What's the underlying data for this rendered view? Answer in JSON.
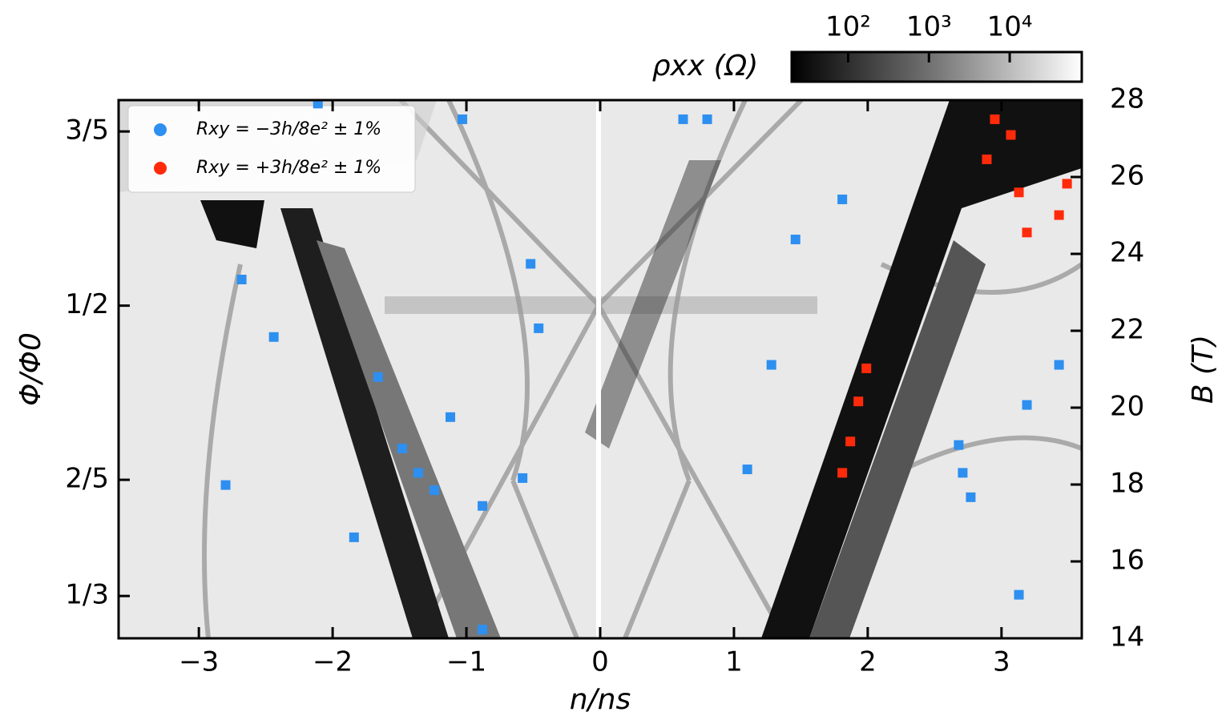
{
  "chart_data": {
    "type": "scatter",
    "xlabel": "n/ns",
    "ylabel": "Φ/Φ0",
    "y2label": "B (T)",
    "xlim": [
      -3.6,
      3.6
    ],
    "xticks": [
      {
        "value": -3,
        "label": "−3"
      },
      {
        "value": -2,
        "label": "−2"
      },
      {
        "value": -1,
        "label": "−1"
      },
      0,
      1,
      2,
      3
    ],
    "ylim": [
      0.309,
      0.618
    ],
    "yticks": [
      {
        "value": 0.6,
        "label": "3/5"
      },
      {
        "value": 0.5,
        "label": "1/2"
      },
      {
        "value": 0.4,
        "label": "2/5"
      },
      {
        "value": 0.3333,
        "label": "1/3"
      }
    ],
    "y2lim": [
      14,
      28
    ],
    "y2ticks": [
      14,
      16,
      18,
      20,
      22,
      24,
      26,
      28
    ],
    "colorbar": {
      "label": "ρxx (Ω)",
      "log": true,
      "clim": [
        20,
        78000
      ],
      "ticks": [
        {
          "value": 100,
          "label": "10²"
        },
        {
          "value": 1000,
          "label": "10³"
        },
        {
          "value": 10000,
          "label": "10⁴"
        }
      ]
    },
    "legend": "upper left",
    "series": [
      {
        "name": "Rxy = −3h/8e² ± 1%",
        "color": "#2d8ff0",
        "x": [
          -1.48,
          -1.36,
          -1.24,
          -1.66,
          -1.12,
          -0.88,
          -0.58,
          -0.52,
          -0.46,
          0.62,
          0.8,
          1.28,
          1.1,
          2.71,
          2.68,
          2.77,
          3.19,
          1.46,
          1.81,
          -2.68,
          -2.44,
          -2.8,
          -2.11,
          3.13,
          -0.88,
          3.43,
          -1.03,
          -1.84
        ],
        "values": [
          0.418,
          0.404,
          0.394,
          0.459,
          0.436,
          0.385,
          0.401,
          0.524,
          0.487,
          0.607,
          0.607,
          0.466,
          0.406,
          0.404,
          0.42,
          0.39,
          0.443,
          0.538,
          0.561,
          0.515,
          0.482,
          0.397,
          0.616,
          0.334,
          0.314,
          0.466,
          0.607,
          0.367
        ]
      },
      {
        "name": "Rxy = +3h/8e² ± 1%",
        "color": "#ff2a0a",
        "x": [
          1.87,
          1.81,
          1.93,
          1.99,
          2.95,
          2.89,
          3.13,
          3.19,
          3.49,
          3.43,
          3.07
        ],
        "values": [
          0.422,
          0.404,
          0.445,
          0.464,
          0.607,
          0.584,
          0.565,
          0.542,
          0.57,
          0.552,
          0.598
        ]
      }
    ]
  }
}
